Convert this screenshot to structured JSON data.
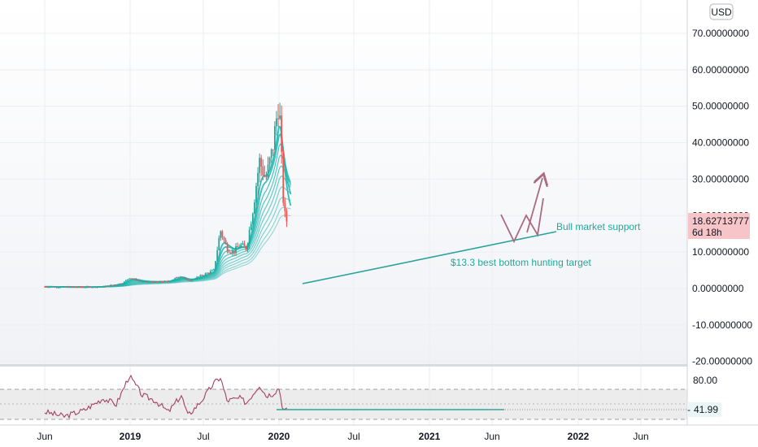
{
  "header": {
    "currency": "USD"
  },
  "price_label": {
    "value": "18.62713777",
    "countdown": "6d 18h"
  },
  "rsi_label": {
    "value": "41.99",
    "level_tick": "80.00"
  },
  "annotations": {
    "support": "Bull market support",
    "target": "$13.3 best bottom hunting target"
  },
  "colors": {
    "up": "#26a69a",
    "down": "#ef5350",
    "ribbon": "#1fb5ae",
    "annotation": "#26a69a",
    "arrow": "#a96b7e",
    "rsi_line": "#a3425f",
    "rsi_band": "#e6e6e6",
    "price_badge": "#f7c5c8"
  },
  "chart_data": [
    {
      "type": "line",
      "title": "",
      "y_axis": {
        "ticks": [
          "70.00000000",
          "60.00000000",
          "50.00000000",
          "40.00000000",
          "30.00000000",
          "20.00000000",
          "10.00000000",
          "0.00000000",
          "-10.00000000",
          "-20.00000000"
        ],
        "range": [
          -20,
          72
        ]
      },
      "x_axis": {
        "ticks": [
          "Jun",
          "2019",
          "Jul",
          "2020",
          "Jul",
          "2021",
          "Jun",
          "2022",
          "Jun"
        ]
      },
      "series": [
        {
          "values_by_month": [
            {
              "x": "2018-05",
              "y": 0.5
            },
            {
              "x": "2018-08",
              "y": 0.4
            },
            {
              "x": "2018-11",
              "y": 0.4
            },
            {
              "x": "2019-02",
              "y": 0.5
            },
            {
              "x": "2019-05",
              "y": 1.5
            },
            {
              "x": "2019-06",
              "y": 3.0
            },
            {
              "x": "2019-08",
              "y": 1.8
            },
            {
              "x": "2019-10",
              "y": 1.8
            },
            {
              "x": "2019-12",
              "y": 2.0
            },
            {
              "x": "2020-02",
              "y": 3.5
            },
            {
              "x": "2020-03",
              "y": 2.0
            },
            {
              "x": "2020-05",
              "y": 3.5
            },
            {
              "x": "2020-07",
              "y": 5.0
            },
            {
              "x": "2020-08",
              "y": 16.0
            },
            {
              "x": "2020-09",
              "y": 11.0
            },
            {
              "x": "2020-10",
              "y": 10.0
            },
            {
              "x": "2020-11",
              "y": 12.0
            },
            {
              "x": "2020-12",
              "y": 11.0
            },
            {
              "x": "2021-01",
              "y": 22.0
            },
            {
              "x": "2021-02",
              "y": 35.0
            },
            {
              "x": "2021-03",
              "y": 30.0
            },
            {
              "x": "2021-04",
              "y": 38.0
            },
            {
              "x": "2021-05",
              "y": 52.0
            },
            {
              "x": "2021-05-20",
              "y": 25.0
            },
            {
              "x": "2021-06",
              "y": 18.6
            }
          ]
        }
      ],
      "last_value": 18.62713777
    },
    {
      "type": "line",
      "title": "",
      "y_axis": {
        "ticks": [
          "80.00"
        ],
        "band": [
          30,
          70
        ]
      },
      "series": [
        {
          "values_by_month": [
            {
              "x": "2018-05",
              "y": 40
            },
            {
              "x": "2018-08",
              "y": 34
            },
            {
              "x": "2018-11",
              "y": 42
            },
            {
              "x": "2019-02",
              "y": 58
            },
            {
              "x": "2019-04",
              "y": 50
            },
            {
              "x": "2019-06",
              "y": 88
            },
            {
              "x": "2019-08",
              "y": 62
            },
            {
              "x": "2019-10",
              "y": 55
            },
            {
              "x": "2019-12",
              "y": 40
            },
            {
              "x": "2020-02",
              "y": 62
            },
            {
              "x": "2020-03",
              "y": 35
            },
            {
              "x": "2020-05",
              "y": 54
            },
            {
              "x": "2020-07",
              "y": 78
            },
            {
              "x": "2020-08",
              "y": 86
            },
            {
              "x": "2020-09",
              "y": 55
            },
            {
              "x": "2020-11",
              "y": 58
            },
            {
              "x": "2020-12",
              "y": 52
            },
            {
              "x": "2021-02",
              "y": 76
            },
            {
              "x": "2021-03",
              "y": 62
            },
            {
              "x": "2021-04",
              "y": 64
            },
            {
              "x": "2021-05",
              "y": 72
            },
            {
              "x": "2021-05-20",
              "y": 43
            },
            {
              "x": "2021-06",
              "y": 41.99
            }
          ]
        }
      ],
      "last_value": 41.99
    }
  ]
}
